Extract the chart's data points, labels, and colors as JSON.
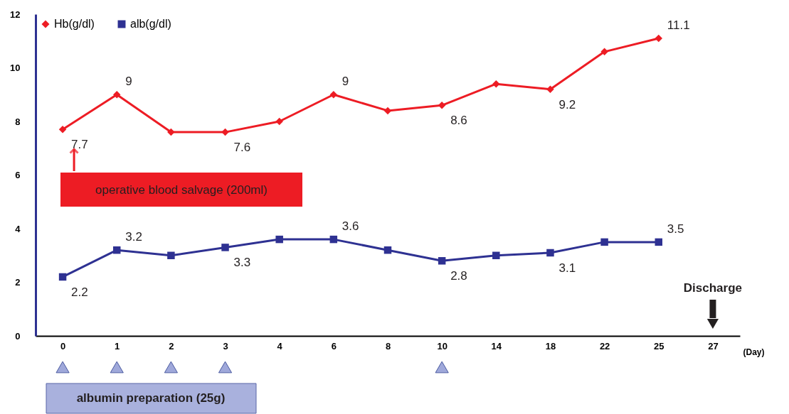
{
  "chart_data": {
    "type": "line",
    "xlabel": "(Day)",
    "categories": [
      "0",
      "1",
      "2",
      "3",
      "4",
      "6",
      "8",
      "10",
      "14",
      "18",
      "22",
      "25",
      "27"
    ],
    "series": [
      {
        "name": "Hb(g/dl)",
        "color": "#ed1c24",
        "marker": "diamond",
        "values": [
          7.7,
          9,
          7.6,
          7.6,
          8,
          9,
          8.4,
          8.6,
          9.4,
          9.2,
          10.6,
          11.1,
          null
        ],
        "value_labels": [
          "7.7",
          "9",
          null,
          "7.6",
          null,
          "9",
          null,
          "8.6",
          null,
          "9.2",
          null,
          "11.1",
          null
        ]
      },
      {
        "name": "alb(g/dl)",
        "color": "#2e3192",
        "marker": "square",
        "values": [
          2.2,
          3.2,
          3.0,
          3.3,
          3.6,
          3.6,
          3.2,
          2.8,
          3.0,
          3.1,
          3.5,
          3.5,
          null
        ],
        "value_labels": [
          "2.2",
          "3.2",
          null,
          "3.3",
          null,
          "3.6",
          null,
          "2.8",
          null,
          "3.1",
          null,
          "3.5",
          null
        ]
      }
    ],
    "ylim": [
      0,
      12
    ],
    "yticks": [
      0,
      2,
      4,
      6,
      8,
      10,
      12
    ],
    "grid": false,
    "legend": "top left",
    "annotations": [
      "operative blood salvage (200ml)",
      "Discharge",
      "albumin preparation (25g)"
    ]
  }
}
